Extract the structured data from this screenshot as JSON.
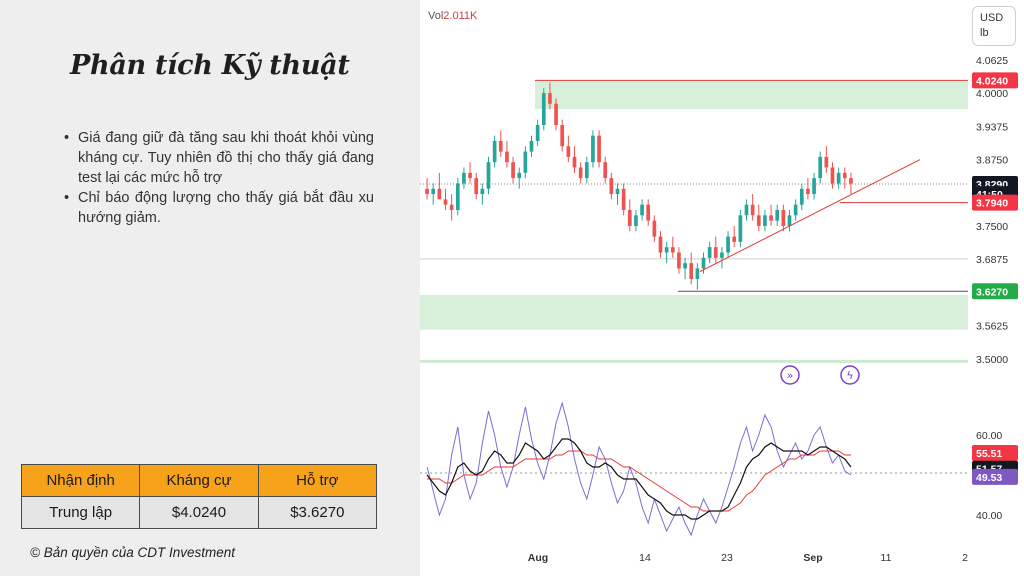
{
  "slide": {
    "title": "Phân tích Kỹ thuật",
    "bullets": [
      "Giá đang giữ đà tăng sau khi thoát khỏi vùng kháng cự. Tuy nhiên đồ thị cho thấy giá đang test lại các mức hỗ trợ",
      "Chỉ báo động lượng cho thấy giá bắt đầu xu hướng giảm."
    ],
    "table": {
      "headers": [
        "Nhận định",
        "Kháng cự",
        "Hỗ trợ"
      ],
      "row": [
        "Trung lập",
        "$4.0240",
        "$3.6270"
      ]
    },
    "copyright": "© Bản quyền của CDT Investment"
  },
  "colors": {
    "header_orange": "#f6a21a",
    "up_candle": "#26a69a",
    "down_candle": "#ef5350",
    "zone_green": "#d8f0d9",
    "trend_red": "#e53935",
    "momentum_purple": "#7e6ad6",
    "label_red": "#f23645",
    "label_green": "#22ab47",
    "label_black": "#131722",
    "label_purple": "#7e57c2"
  },
  "chart_data": {
    "type": "candlestick",
    "volume_label": "Vol",
    "volume_value": "2.011K",
    "currency": "USD",
    "unit": "lb",
    "price_axis_ticks": [
      "4.0625",
      "4.0000",
      "3.9375",
      "3.8750",
      "3.7500",
      "3.6875",
      "3.5625",
      "3.5000"
    ],
    "price_range": [
      3.46,
      4.1
    ],
    "x_ticks": [
      "Aug",
      "14",
      "23",
      "Sep",
      "11",
      "2"
    ],
    "candles_ohlc": [
      [
        3.82,
        3.84,
        3.8,
        3.81
      ],
      [
        3.81,
        3.83,
        3.79,
        3.82
      ],
      [
        3.82,
        3.85,
        3.81,
        3.8
      ],
      [
        3.8,
        3.82,
        3.78,
        3.79
      ],
      [
        3.79,
        3.81,
        3.76,
        3.78
      ],
      [
        3.78,
        3.84,
        3.77,
        3.83
      ],
      [
        3.83,
        3.86,
        3.82,
        3.85
      ],
      [
        3.85,
        3.87,
        3.83,
        3.84
      ],
      [
        3.84,
        3.85,
        3.8,
        3.81
      ],
      [
        3.81,
        3.83,
        3.79,
        3.82
      ],
      [
        3.82,
        3.88,
        3.81,
        3.87
      ],
      [
        3.87,
        3.92,
        3.86,
        3.91
      ],
      [
        3.91,
        3.93,
        3.88,
        3.89
      ],
      [
        3.89,
        3.91,
        3.86,
        3.87
      ],
      [
        3.87,
        3.88,
        3.83,
        3.84
      ],
      [
        3.84,
        3.86,
        3.82,
        3.85
      ],
      [
        3.85,
        3.9,
        3.84,
        3.89
      ],
      [
        3.89,
        3.92,
        3.88,
        3.91
      ],
      [
        3.91,
        3.95,
        3.9,
        3.94
      ],
      [
        3.94,
        4.01,
        3.93,
        4.0
      ],
      [
        4.0,
        4.02,
        3.97,
        3.98
      ],
      [
        3.98,
        3.99,
        3.93,
        3.94
      ],
      [
        3.94,
        3.95,
        3.89,
        3.9
      ],
      [
        3.9,
        3.92,
        3.87,
        3.88
      ],
      [
        3.88,
        3.9,
        3.85,
        3.86
      ],
      [
        3.86,
        3.87,
        3.83,
        3.84
      ],
      [
        3.84,
        3.88,
        3.83,
        3.87
      ],
      [
        3.87,
        3.93,
        3.86,
        3.92
      ],
      [
        3.92,
        3.93,
        3.86,
        3.87
      ],
      [
        3.87,
        3.88,
        3.83,
        3.84
      ],
      [
        3.84,
        3.85,
        3.8,
        3.81
      ],
      [
        3.81,
        3.83,
        3.79,
        3.82
      ],
      [
        3.82,
        3.83,
        3.77,
        3.78
      ],
      [
        3.78,
        3.8,
        3.74,
        3.75
      ],
      [
        3.75,
        3.78,
        3.74,
        3.77
      ],
      [
        3.77,
        3.8,
        3.76,
        3.79
      ],
      [
        3.79,
        3.8,
        3.75,
        3.76
      ],
      [
        3.76,
        3.77,
        3.72,
        3.73
      ],
      [
        3.73,
        3.74,
        3.69,
        3.7
      ],
      [
        3.7,
        3.72,
        3.68,
        3.71
      ],
      [
        3.71,
        3.73,
        3.69,
        3.7
      ],
      [
        3.7,
        3.71,
        3.66,
        3.67
      ],
      [
        3.67,
        3.69,
        3.65,
        3.68
      ],
      [
        3.68,
        3.7,
        3.64,
        3.65
      ],
      [
        3.65,
        3.68,
        3.63,
        3.67
      ],
      [
        3.67,
        3.7,
        3.66,
        3.69
      ],
      [
        3.69,
        3.72,
        3.68,
        3.71
      ],
      [
        3.71,
        3.73,
        3.68,
        3.69
      ],
      [
        3.69,
        3.71,
        3.67,
        3.7
      ],
      [
        3.7,
        3.74,
        3.69,
        3.73
      ],
      [
        3.73,
        3.75,
        3.71,
        3.72
      ],
      [
        3.72,
        3.78,
        3.71,
        3.77
      ],
      [
        3.77,
        3.8,
        3.76,
        3.79
      ],
      [
        3.79,
        3.81,
        3.76,
        3.77
      ],
      [
        3.77,
        3.79,
        3.74,
        3.75
      ],
      [
        3.75,
        3.78,
        3.74,
        3.77
      ],
      [
        3.77,
        3.79,
        3.75,
        3.76
      ],
      [
        3.76,
        3.79,
        3.75,
        3.78
      ],
      [
        3.78,
        3.79,
        3.74,
        3.75
      ],
      [
        3.75,
        3.78,
        3.74,
        3.77
      ],
      [
        3.77,
        3.8,
        3.76,
        3.79
      ],
      [
        3.79,
        3.83,
        3.78,
        3.82
      ],
      [
        3.82,
        3.84,
        3.8,
        3.81
      ],
      [
        3.81,
        3.85,
        3.8,
        3.84
      ],
      [
        3.84,
        3.89,
        3.83,
        3.88
      ],
      [
        3.88,
        3.9,
        3.85,
        3.86
      ],
      [
        3.86,
        3.87,
        3.82,
        3.83
      ],
      [
        3.83,
        3.86,
        3.82,
        3.85
      ],
      [
        3.85,
        3.86,
        3.82,
        3.84
      ],
      [
        3.84,
        3.85,
        3.81,
        3.83
      ]
    ],
    "resistance_zone": [
      3.97,
      4.024
    ],
    "support_zone": [
      3.555,
      3.62
    ],
    "support_line": 3.627,
    "trend_line": {
      "from": [
        3.664
      ],
      "to": [
        3.875
      ]
    },
    "price_labels": [
      {
        "value": 4.024,
        "text": "4.0240",
        "kind": "red"
      },
      {
        "value": 3.829,
        "text": "3.8290",
        "kind": "black"
      },
      {
        "value": 3.81,
        "text": "41:50",
        "kind": "black"
      },
      {
        "value": 3.794,
        "text": "3.7940",
        "kind": "red"
      },
      {
        "value": 3.627,
        "text": "3.6270",
        "kind": "green"
      }
    ],
    "oscillator": {
      "axis_ticks": [
        "60.00",
        "40.00"
      ],
      "range": [
        35,
        70
      ],
      "labels": [
        {
          "value": 55.51,
          "text": "55.51",
          "kind": "red"
        },
        {
          "value": 51.57,
          "text": "51.57",
          "kind": "black"
        },
        {
          "value": 49.53,
          "text": "49.53",
          "kind": "purple"
        }
      ],
      "fast": [
        52,
        46,
        40,
        44,
        55,
        62,
        50,
        44,
        48,
        58,
        66,
        60,
        52,
        47,
        52,
        60,
        67,
        59,
        53,
        49,
        55,
        63,
        68,
        62,
        54,
        48,
        44,
        50,
        57,
        54,
        48,
        43,
        46,
        52,
        48,
        42,
        38,
        44,
        40,
        36,
        39,
        42,
        38,
        35,
        40,
        44,
        41,
        38,
        42,
        47,
        52,
        58,
        62,
        56,
        60,
        65,
        62,
        56,
        52,
        55,
        58,
        54,
        56,
        60,
        62,
        57,
        53,
        55,
        51,
        50
      ],
      "slow": [
        50,
        48,
        46,
        45,
        48,
        52,
        53,
        51,
        50,
        51,
        54,
        56,
        55,
        53,
        53,
        55,
        58,
        57,
        56,
        54,
        55,
        57,
        59,
        59,
        58,
        56,
        53,
        52,
        52,
        53,
        52,
        50,
        49,
        49,
        49,
        47,
        45,
        44,
        43,
        41,
        40,
        40,
        40,
        39,
        39,
        40,
        41,
        41,
        41,
        42,
        45,
        48,
        52,
        54,
        55,
        57,
        58,
        57,
        56,
        56,
        56,
        56,
        55,
        56,
        57,
        57,
        56,
        55,
        54,
        52
      ],
      "signal": [
        49,
        49,
        49,
        48,
        48,
        49,
        50,
        50,
        50,
        50,
        51,
        52,
        52,
        52,
        52,
        53,
        54,
        54,
        54,
        54,
        54,
        55,
        55,
        56,
        56,
        56,
        55,
        55,
        54,
        54,
        54,
        53,
        52,
        52,
        51,
        50,
        49,
        48,
        47,
        46,
        45,
        44,
        43,
        42,
        42,
        41,
        41,
        41,
        41,
        41,
        42,
        43,
        45,
        46,
        48,
        50,
        51,
        52,
        53,
        54,
        54,
        55,
        55,
        55,
        56,
        56,
        56,
        56,
        55,
        55
      ]
    }
  }
}
